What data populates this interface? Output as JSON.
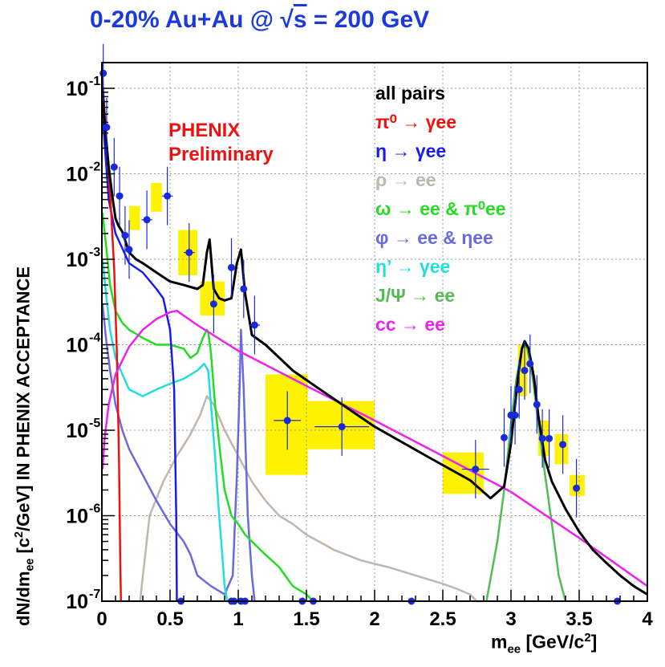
{
  "title": {
    "prefix": "0-20% Au+Au @ ",
    "sqrt_symbol": "√",
    "sqrt_arg": "s",
    "suffix": " = 200 GeV"
  },
  "annotation": {
    "line1": "PHENIX",
    "line2": "Preliminary"
  },
  "axes": {
    "ylabel": {
      "main": "dN/dm",
      "sub": "ee",
      "rest1": " [c",
      "sup": "2",
      "rest2": "/GeV] IN PHENIX ACCEPTANCE"
    },
    "xlabel": {
      "main": "m",
      "sub": "ee",
      "rest1": " [GeV/c",
      "sup": "2",
      "rest2": "]"
    }
  },
  "colors": {
    "all": "#000000",
    "pi0": "#ee1111",
    "eta": "#1a1aee",
    "rho": "#bfb6ae",
    "omega": "#22dd22",
    "phi": "#6a6add",
    "etaprime": "#22dddd",
    "jpsi": "#55bb55",
    "cc": "#ee22ee",
    "data": "#1a2adb",
    "syst": "#fff200",
    "title": "#1a3adc"
  },
  "legend": [
    {
      "id": "all",
      "label": "all pairs",
      "color": "#000000"
    },
    {
      "id": "pi0",
      "label": "π⁰ → γee",
      "color": "#ee1111"
    },
    {
      "id": "eta",
      "label": "η → γee",
      "color": "#1a1aee"
    },
    {
      "id": "rho",
      "label": "ρ → ee",
      "color": "#bfb6ae"
    },
    {
      "id": "omega",
      "label": "ω → ee & π⁰ee",
      "color": "#22dd22"
    },
    {
      "id": "phi",
      "label": "φ → ee & ηee",
      "color": "#6a6add"
    },
    {
      "id": "etaprime",
      "label": "η’ → γee",
      "color": "#22dddd"
    },
    {
      "id": "jpsi",
      "label": "J/Ψ → ee",
      "color": "#55bb55"
    },
    {
      "id": "cc",
      "label": "cc → ee",
      "color": "#ee22ee"
    }
  ],
  "chart_data": {
    "type": "line",
    "title": "0-20% Au+Au @ √s = 200 GeV",
    "xlabel": "m_ee [GeV/c^2]",
    "ylabel": "dN/dm_ee [c^2/GeV] IN PHENIX ACCEPTANCE",
    "xlim": [
      0,
      4
    ],
    "ylim": [
      1e-07,
      0.2
    ],
    "yscale": "log",
    "grid": true,
    "x_ticks": [
      "0",
      "0.5",
      "1",
      "1.5",
      "2",
      "2.5",
      "3",
      "3.5",
      "4"
    ],
    "y_ticks": [
      {
        "base": "10",
        "exp": "-7"
      },
      {
        "base": "10",
        "exp": "-6"
      },
      {
        "base": "10",
        "exp": "-5"
      },
      {
        "base": "10",
        "exp": "-4"
      },
      {
        "base": "10",
        "exp": "-3"
      },
      {
        "base": "10",
        "exp": "-2"
      },
      {
        "base": "10",
        "exp": "-1"
      }
    ],
    "series": [
      {
        "name": "all pairs",
        "color": "#000000",
        "x": [
          0.005,
          0.02,
          0.05,
          0.08,
          0.1,
          0.12,
          0.15,
          0.2,
          0.25,
          0.3,
          0.4,
          0.5,
          0.6,
          0.7,
          0.74,
          0.77,
          0.79,
          0.82,
          0.86,
          0.9,
          0.95,
          0.99,
          1.02,
          1.05,
          1.1,
          1.2,
          1.4,
          1.6,
          2.0,
          2.4,
          2.7,
          2.85,
          2.95,
          3.0,
          3.05,
          3.08,
          3.1,
          3.13,
          3.17,
          3.2,
          3.25,
          3.3,
          3.4,
          3.5,
          3.6,
          3.7,
          3.8,
          3.9,
          4.0
        ],
        "values": [
          0.1,
          0.04,
          0.012,
          0.005,
          0.003,
          0.0025,
          0.0021,
          0.0012,
          0.001,
          0.0009,
          0.0007,
          0.00055,
          0.0005,
          0.00045,
          0.0005,
          0.0012,
          0.0017,
          0.00045,
          0.00035,
          0.00033,
          0.00035,
          0.0009,
          0.0013,
          0.0004,
          0.00013,
          0.0001,
          5e-05,
          3e-05,
          1.1e-05,
          4.8e-06,
          2.6e-06,
          1.6e-06,
          2.2e-06,
          7e-06,
          4e-05,
          9e-05,
          0.00011,
          9e-05,
          4e-05,
          1.5e-05,
          4.5e-06,
          2.5e-06,
          1.2e-06,
          6.5e-07,
          4e-07,
          2.8e-07,
          2e-07,
          1.5e-07,
          1.2e-07
        ]
      },
      {
        "name": "π0 → γee",
        "color": "#ee1111",
        "x": [
          0.005,
          0.03,
          0.06,
          0.09,
          0.11,
          0.125,
          0.135,
          0.14
        ],
        "values": [
          0.12,
          0.03,
          0.006,
          0.0008,
          8e-05,
          5e-06,
          3e-07,
          1e-07
        ]
      },
      {
        "name": "η → γee",
        "color": "#1a1aee",
        "x": [
          0.005,
          0.05,
          0.1,
          0.2,
          0.3,
          0.4,
          0.45,
          0.5,
          0.53,
          0.545,
          0.55
        ],
        "values": [
          0.05,
          0.005,
          0.002,
          0.0009,
          0.0007,
          0.00045,
          0.00035,
          0.00015,
          3e-05,
          1e-06,
          1e-07
        ]
      },
      {
        "name": "ρ → ee",
        "color": "#bfb6ae",
        "x": [
          0.28,
          0.35,
          0.45,
          0.55,
          0.65,
          0.72,
          0.77,
          0.82,
          0.9,
          1.0,
          1.1,
          1.2,
          1.3,
          1.4,
          1.5,
          1.7,
          1.9,
          2.1,
          2.3,
          2.5,
          2.6,
          2.7,
          2.75,
          2.8
        ],
        "values": [
          1e-07,
          1e-06,
          2.5e-06,
          5e-06,
          9e-06,
          1.5e-05,
          2.5e-05,
          2e-05,
          1e-05,
          5e-06,
          2.5e-06,
          1.5e-06,
          1e-06,
          8e-07,
          6e-07,
          4e-07,
          3e-07,
          2.5e-07,
          2e-07,
          1.6e-07,
          1.4e-07,
          1.2e-07,
          1e-07,
          1e-07
        ]
      },
      {
        "name": "ω → ee & π0ee",
        "color": "#22dd22",
        "x": [
          0.005,
          0.03,
          0.06,
          0.1,
          0.15,
          0.2,
          0.3,
          0.4,
          0.5,
          0.6,
          0.65,
          0.7,
          0.74,
          0.77,
          0.78,
          0.8,
          0.83,
          0.87,
          0.9,
          0.95,
          1.0,
          1.05,
          1.1,
          1.2,
          1.3,
          1.4,
          1.5,
          1.55,
          1.6
        ],
        "values": [
          0.0035,
          0.0015,
          0.0005,
          0.00025,
          0.00018,
          0.00015,
          0.00012,
          0.0001,
          0.0001,
          9e-05,
          7e-05,
          8e-05,
          0.00012,
          0.00015,
          0.00014,
          8e-05,
          2e-05,
          5e-06,
          2e-06,
          1e-06,
          8e-07,
          6e-07,
          5e-07,
          3.5e-07,
          2.5e-07,
          1.5e-07,
          1.2e-07,
          1e-07,
          1e-07
        ]
      },
      {
        "name": "φ → ee & ηee",
        "color": "#6a6add",
        "x": [
          0.005,
          0.03,
          0.06,
          0.1,
          0.15,
          0.2,
          0.3,
          0.4,
          0.5,
          0.6,
          0.65,
          0.7,
          0.8,
          0.9,
          0.96,
          0.99,
          1.01,
          1.02,
          1.04,
          1.07,
          1.1,
          1.12
        ],
        "values": [
          0.0003,
          0.00012,
          5e-05,
          2e-05,
          1e-05,
          6e-06,
          3e-06,
          1.5e-06,
          8e-07,
          5e-07,
          3.5e-07,
          2e-07,
          1.5e-07,
          1.2e-07,
          2e-07,
          3e-06,
          3e-05,
          0.00015,
          3e-05,
          1e-06,
          2e-07,
          1e-07
        ]
      },
      {
        "name": "η’ → γee",
        "color": "#22dddd",
        "x": [
          0.005,
          0.03,
          0.06,
          0.1,
          0.15,
          0.2,
          0.3,
          0.4,
          0.5,
          0.6,
          0.7,
          0.75,
          0.78,
          0.8,
          0.83,
          0.86,
          0.88,
          0.9,
          0.92
        ],
        "values": [
          0.001,
          0.0004,
          0.00015,
          7e-05,
          4.5e-05,
          3e-05,
          2.5e-05,
          3e-05,
          3.5e-05,
          4e-05,
          5e-05,
          6e-05,
          5e-05,
          2e-05,
          5e-06,
          1e-06,
          4e-07,
          1.5e-07,
          1e-07
        ]
      },
      {
        "name": "J/Ψ → ee",
        "color": "#55bb55",
        "x": [
          2.82,
          2.9,
          2.95,
          3.0,
          3.04,
          3.08,
          3.1,
          3.12,
          3.16,
          3.2,
          3.25,
          3.3,
          3.35,
          3.4
        ],
        "values": [
          1e-07,
          5e-07,
          2e-06,
          1.2e-05,
          4e-05,
          9e-05,
          0.0001,
          9e-05,
          4e-05,
          1.2e-05,
          3e-06,
          8e-07,
          2e-07,
          1e-07
        ]
      },
      {
        "name": "cc → ee",
        "color": "#ee22ee",
        "x": [
          0.005,
          0.02,
          0.05,
          0.1,
          0.2,
          0.3,
          0.4,
          0.5,
          0.55,
          0.7,
          1.0,
          1.5,
          2.0,
          2.5,
          3.0,
          3.5,
          4.0
        ],
        "values": [
          3.5e-06,
          8e-06,
          2e-05,
          4.5e-05,
          9.5e-05,
          0.00015,
          0.0002,
          0.00024,
          0.00025,
          0.00017,
          8.5e-05,
          3.3e-05,
          1.3e-05,
          5e-06,
          1.9e-06,
          5.5e-07,
          1.5e-07
        ]
      }
    ],
    "data_points": {
      "name": "data",
      "color": "#1a2adb",
      "x": [
        0.01,
        0.035,
        0.09,
        0.13,
        0.17,
        0.2,
        0.33,
        0.48,
        0.64,
        0.82,
        0.95,
        1.04,
        1.12,
        1.36,
        1.76,
        2.74,
        2.95,
        3.0,
        3.03,
        3.06,
        3.1,
        3.14,
        3.19,
        3.23,
        3.28,
        3.38,
        3.48
      ],
      "values": [
        0.15,
        0.035,
        0.012,
        0.0055,
        0.0019,
        0.0013,
        0.0029,
        0.0055,
        0.0012,
        0.0003,
        0.0008,
        0.00045,
        0.00017,
        1.3e-05,
        1.1e-05,
        3.5e-06,
        8.2e-06,
        1.5e-05,
        1.5e-05,
        3e-05,
        5e-05,
        6e-05,
        2e-05,
        8e-06,
        8e-06,
        6.8e-06,
        2.1e-06
      ],
      "x_err": [
        0.005,
        0.005,
        0.005,
        0.005,
        0.01,
        0.01,
        0.04,
        0.04,
        0.04,
        0.02,
        0.02,
        0.02,
        0.04,
        0.1,
        0.2,
        0.1,
        0.01,
        0.01,
        0.01,
        0.01,
        0.01,
        0.01,
        0.01,
        0.01,
        0.01,
        0.01,
        0.01
      ],
      "zero_points_x": [
        0.58,
        0.95,
        0.97,
        1.02,
        1.05,
        1.47,
        1.55,
        2.27,
        3.78
      ]
    },
    "systematics": [
      {
        "x": [
          0.36,
          0.44
        ],
        "y": [
          0.0036,
          0.0078
        ]
      },
      {
        "x": [
          0.2,
          0.28
        ],
        "y": [
          0.0022,
          0.0042
        ]
      },
      {
        "x": [
          0.56,
          0.7
        ],
        "y": [
          0.00065,
          0.0022
        ]
      },
      {
        "x": [
          0.72,
          0.9
        ],
        "y": [
          0.00022,
          0.00055
        ]
      },
      {
        "x": [
          1.2,
          1.51
        ],
        "y": [
          3e-06,
          4.5e-05
        ]
      },
      {
        "x": [
          1.51,
          2.0
        ],
        "y": [
          6e-06,
          2.2e-05
        ]
      },
      {
        "x": [
          2.5,
          2.8
        ],
        "y": [
          1.8e-06,
          5.5e-06
        ]
      },
      {
        "x": [
          3.05,
          3.12
        ],
        "y": [
          2.5e-05,
          0.0001
        ]
      },
      {
        "x": [
          3.2,
          3.28
        ],
        "y": [
          5e-06,
          1.3e-05
        ]
      },
      {
        "x": [
          3.32,
          3.42
        ],
        "y": [
          4e-06,
          9e-06
        ]
      },
      {
        "x": [
          3.43,
          3.54
        ],
        "y": [
          1.7e-06,
          3e-06
        ]
      }
    ]
  }
}
